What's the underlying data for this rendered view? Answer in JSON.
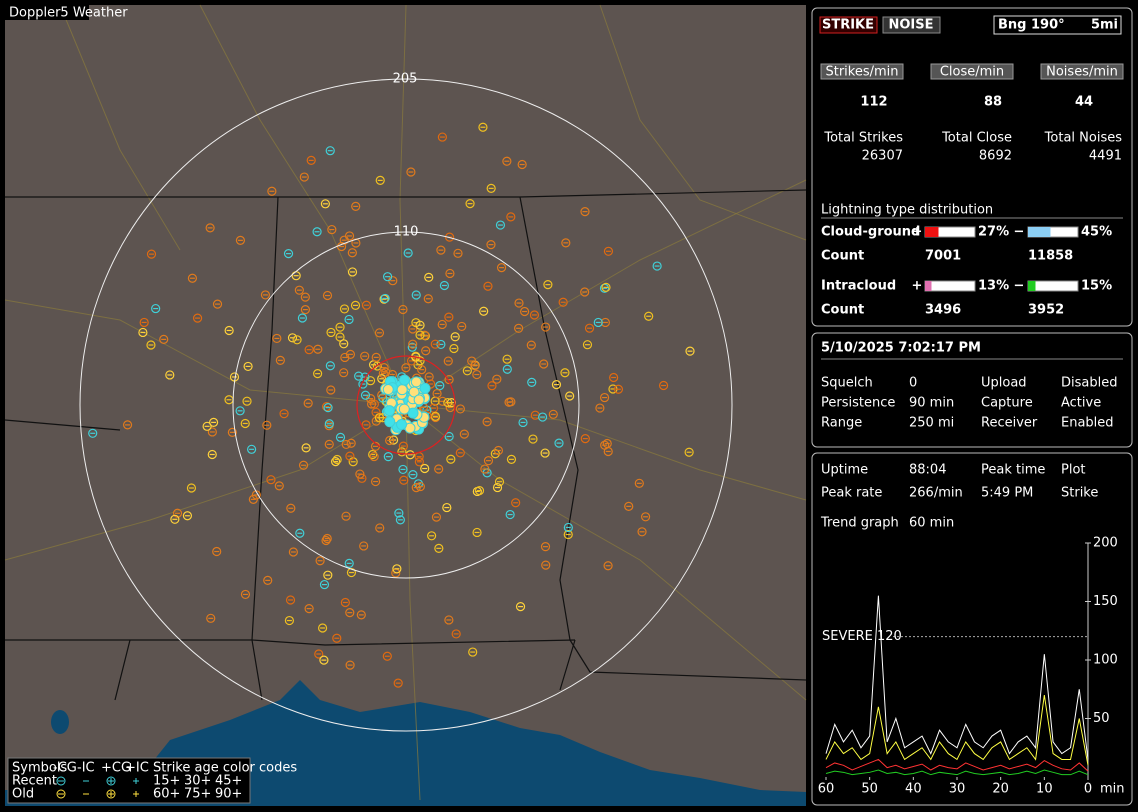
{
  "map": {
    "title": "Doppler5 Weather",
    "rings": [
      {
        "label": "205"
      },
      {
        "label": "110"
      }
    ],
    "legend": {
      "symbols": "Symbols",
      "types": [
        "-CG",
        "-IC",
        "+CG",
        "+IC"
      ],
      "age_title": "Strike age color codes",
      "rows": [
        {
          "label": "Recent",
          "ages": [
            "15+",
            "30+",
            "45+"
          ]
        },
        {
          "label": "Old",
          "ages": [
            "60+",
            "75+",
            "90+"
          ]
        }
      ]
    }
  },
  "controls": {
    "strike": "STRIKE",
    "noise": "NOISE",
    "bearing": "Bng 190°",
    "distance": "5mi"
  },
  "rates": [
    {
      "label": "Strikes/min",
      "value": 112,
      "total_label": "Total Strikes",
      "total": 26307,
      "color": "#ffffff"
    },
    {
      "label": "Close/min",
      "value": 88,
      "total_label": "Total Close",
      "total": 8692,
      "color": "#ffffff"
    },
    {
      "label": "Noises/min",
      "value": 44,
      "total_label": "Total Noises",
      "total": 4491,
      "color": "#ffff33"
    }
  ],
  "distribution": {
    "title": "Lightning type distribution",
    "signs": [
      "+",
      "−"
    ],
    "count_label": "Count",
    "rows": [
      {
        "label": "Cloud-ground",
        "pct": [
          27,
          45
        ],
        "pct_labels": [
          "27%",
          "45%"
        ],
        "counts": [
          7001,
          11858
        ],
        "colors": [
          "#ee1111",
          "#8ccff5"
        ]
      },
      {
        "label": "Intracloud",
        "pct": [
          13,
          15
        ],
        "pct_labels": [
          "13%",
          "15%"
        ],
        "counts": [
          3496,
          3952
        ],
        "colors": [
          "#e070b0",
          "#22cc22"
        ]
      }
    ]
  },
  "status": {
    "datetime": "5/10/2025 7:02:17 PM",
    "rows": [
      {
        "cells": [
          "Squelch",
          "0",
          "Upload",
          "Disabled"
        ],
        "color": "#b0b0b0"
      },
      {
        "cells": [
          "Persistence",
          "90 min",
          "Capture",
          "Active"
        ],
        "color": "#22dd22"
      },
      {
        "cells": [
          "Range",
          "250 mi",
          "Receiver",
          "Enabled"
        ],
        "color": "#22dd22"
      }
    ]
  },
  "stats": {
    "rows": [
      [
        "Uptime",
        "88:04",
        "Peak time",
        "Plot"
      ],
      [
        "Peak rate",
        "266/min",
        "5:49 PM",
        "Strike"
      ]
    ],
    "trend_label": "Trend graph",
    "trend_value": "60 min"
  },
  "chart_data": {
    "type": "line",
    "xlim": [
      60,
      0
    ],
    "xticks": [
      60,
      50,
      40,
      30,
      20,
      10,
      0
    ],
    "x_unit": "min",
    "ylim": [
      0,
      200
    ],
    "yticks": [
      50,
      100,
      150,
      200
    ],
    "threshold": {
      "value": 120,
      "label": "SEVERE 120"
    },
    "x": [
      60,
      58,
      56,
      54,
      52,
      50,
      48,
      46,
      44,
      42,
      40,
      38,
      36,
      34,
      32,
      30,
      28,
      26,
      24,
      22,
      20,
      18,
      16,
      14,
      12,
      10,
      8,
      6,
      4,
      2,
      0
    ],
    "series": [
      {
        "color": "#ffffff",
        "values": [
          20,
          45,
          30,
          40,
          25,
          35,
          155,
          30,
          50,
          25,
          30,
          35,
          20,
          40,
          30,
          25,
          45,
          30,
          25,
          35,
          40,
          20,
          30,
          35,
          25,
          105,
          30,
          20,
          25,
          75,
          15
        ]
      },
      {
        "color": "#ffff44",
        "values": [
          15,
          30,
          20,
          25,
          15,
          20,
          60,
          20,
          30,
          15,
          20,
          25,
          15,
          30,
          20,
          15,
          30,
          20,
          15,
          25,
          30,
          15,
          20,
          25,
          15,
          70,
          20,
          15,
          15,
          50,
          10
        ]
      },
      {
        "color": "#ff3333",
        "values": [
          8,
          12,
          10,
          6,
          9,
          12,
          15,
          8,
          10,
          7,
          9,
          11,
          6,
          10,
          8,
          7,
          12,
          9,
          6,
          8,
          10,
          7,
          9,
          11,
          8,
          14,
          10,
          7,
          6,
          12,
          5
        ]
      },
      {
        "color": "#22cc22",
        "values": [
          3,
          5,
          4,
          2,
          3,
          4,
          6,
          3,
          4,
          2,
          3,
          5,
          2,
          4,
          3,
          2,
          5,
          3,
          2,
          3,
          4,
          2,
          3,
          5,
          3,
          6,
          4,
          2,
          2,
          5,
          2
        ]
      }
    ]
  }
}
